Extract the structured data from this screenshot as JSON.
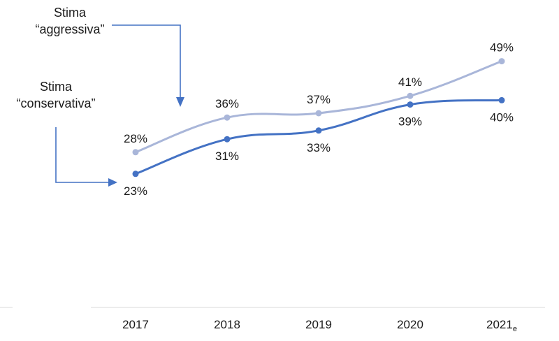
{
  "chart_data": {
    "type": "line",
    "categories": [
      "2017",
      "2018",
      "2019",
      "2020",
      "2021"
    ],
    "category_subscripts": [
      "",
      "",
      "",
      "",
      "e"
    ],
    "ylim": [
      0,
      60
    ],
    "grid": false,
    "series": [
      {
        "name": "Stima “aggressiva”",
        "name_lines": [
          "Stima",
          "“aggressiva”"
        ],
        "values": [
          28,
          36,
          37,
          41,
          49
        ],
        "labels": [
          "28%",
          "36%",
          "37%",
          "41%",
          "49%"
        ],
        "color": "#a9b6d9"
      },
      {
        "name": "Stima “conservativa”",
        "name_lines": [
          "Stima",
          "“conservativa”"
        ],
        "values": [
          23,
          31,
          33,
          39,
          40
        ],
        "labels": [
          "23%",
          "31%",
          "33%",
          "39%",
          "40%"
        ],
        "color": "#4472c4"
      }
    ]
  },
  "colors": {
    "arrow": "#4472c4",
    "axis": "#d9d9d9"
  }
}
